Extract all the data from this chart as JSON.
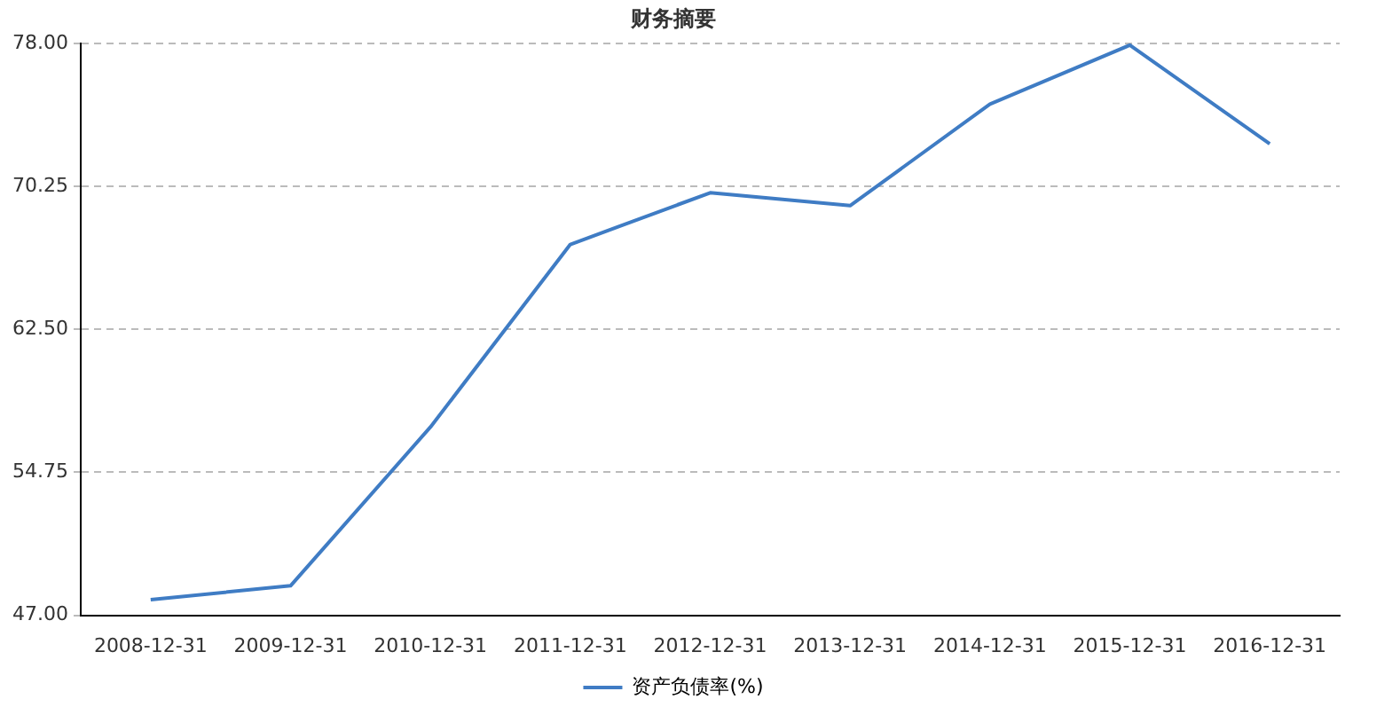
{
  "chart_data": {
    "type": "line",
    "title": "财务摘要",
    "categories": [
      "2008-12-31",
      "2009-12-31",
      "2010-12-31",
      "2011-12-31",
      "2012-12-31",
      "2013-12-31",
      "2014-12-31",
      "2015-12-31",
      "2016-12-31"
    ],
    "series": [
      {
        "name": "资产负债率(%)",
        "color": "#3f7cc4",
        "values": [
          47.85,
          48.6,
          57.2,
          67.1,
          69.9,
          69.2,
          74.7,
          77.9,
          72.55
        ]
      }
    ],
    "ylim": [
      47,
      78
    ],
    "yticks": [
      {
        "value": 47,
        "label": "47.00"
      },
      {
        "value": 54.75,
        "label": "54.75"
      },
      {
        "value": 62.5,
        "label": "62.50"
      },
      {
        "value": 70.25,
        "label": "70.25"
      },
      {
        "value": 78,
        "label": "78.00"
      }
    ],
    "grid": "y",
    "legend": "bottom",
    "marker": "none",
    "line_style": "solid"
  }
}
